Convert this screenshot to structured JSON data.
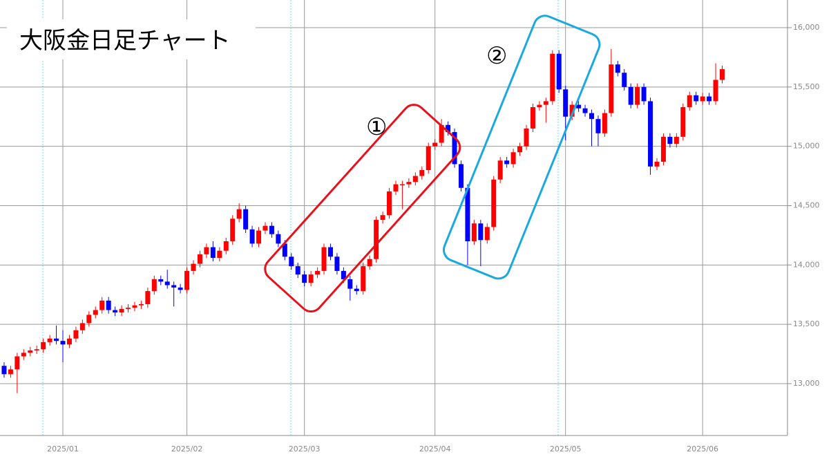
{
  "chart_data": {
    "type": "candlestick",
    "title": "大阪金日足チャート",
    "annotations": [
      "①",
      "②"
    ],
    "up_color": "#ff0000",
    "down_color": "#0000ff",
    "grid": true,
    "xlim": [
      -0.63,
      120
    ],
    "ylim": [
      12563,
      16233
    ],
    "xticks": [
      {
        "value": 9,
        "label": "2025/01"
      },
      {
        "value": 28,
        "label": "2025/02"
      },
      {
        "value": 46,
        "label": "2025/03"
      },
      {
        "value": 66,
        "label": "2025/04"
      },
      {
        "value": 86,
        "label": "2025/05"
      },
      {
        "value": 107,
        "label": "2025/06"
      }
    ],
    "yticks": [
      {
        "value": 13000,
        "label": "13,000"
      },
      {
        "value": 13500,
        "label": "13,500"
      },
      {
        "value": 14000,
        "label": "14,000"
      },
      {
        "value": 14500,
        "label": "14,500"
      },
      {
        "value": 15000,
        "label": "15,000"
      },
      {
        "value": 15500,
        "label": "15,500"
      },
      {
        "value": 16000,
        "label": "16,000"
      }
    ],
    "open": [
      13150,
      13080,
      13120,
      13230,
      13260,
      13280,
      13290,
      13350,
      13380,
      13360,
      13330,
      13380,
      13450,
      13510,
      13580,
      13620,
      13700,
      13620,
      13600,
      13630,
      13640,
      13660,
      13670,
      13780,
      13880,
      13860,
      13830,
      13810,
      13790,
      13950,
      14010,
      14090,
      14150,
      14060,
      14120,
      14200,
      14390,
      14470,
      14300,
      14180,
      14290,
      14330,
      14260,
      14180,
      14070,
      13990,
      13920,
      13850,
      13920,
      13950,
      14150,
      14070,
      13950,
      13880,
      13800,
      13780,
      13990,
      14050,
      14380,
      14420,
      14620,
      14680,
      14680,
      14700,
      14750,
      14800,
      15000,
      15030,
      15180,
      15120,
      14850,
      14650,
      14200,
      14350,
      14210,
      14320,
      14720,
      14880,
      14850,
      14950,
      15000,
      15150,
      15330,
      15350,
      15380,
      15780,
      15480,
      15250,
      15350,
      15320,
      15280,
      15230,
      15110,
      15280,
      15690,
      15620,
      15500,
      15350,
      15500,
      15380,
      14830,
      14870,
      15080,
      15020,
      15080,
      15330,
      15430,
      15380,
      15420,
      15380,
      15560
    ],
    "high": [
      13180,
      13150,
      13260,
      13290,
      13310,
      13320,
      13380,
      13410,
      13490,
      13450,
      13410,
      13480,
      13540,
      13610,
      13650,
      13730,
      13730,
      13650,
      13660,
      13670,
      13690,
      13700,
      13810,
      13910,
      13910,
      13960,
      13860,
      13840,
      13980,
      14040,
      14120,
      14180,
      14200,
      14150,
      14230,
      14420,
      14520,
      14500,
      14330,
      14320,
      14360,
      14360,
      14290,
      14210,
      14100,
      14020,
      13950,
      13950,
      13980,
      14180,
      14180,
      14100,
      13980,
      13910,
      13830,
      14020,
      14080,
      14410,
      14450,
      14650,
      14710,
      14710,
      14730,
      14780,
      14830,
      15030,
      15060,
      15230,
      15210,
      15150,
      14880,
      14680,
      14380,
      14380,
      14350,
      14750,
      14910,
      14910,
      14980,
      15030,
      15180,
      15360,
      15380,
      15410,
      15810,
      15810,
      15510,
      15380,
      15380,
      15350,
      15310,
      15260,
      15310,
      15820,
      15720,
      15650,
      15530,
      15530,
      15530,
      15410,
      14900,
      15110,
      15110,
      15110,
      15360,
      15460,
      15460,
      15450,
      15450,
      15700,
      15680
    ],
    "low": [
      13050,
      13050,
      12920,
      13200,
      13230,
      13250,
      13260,
      13320,
      13330,
      13180,
      13300,
      13350,
      13420,
      13480,
      13550,
      13590,
      13590,
      13570,
      13570,
      13600,
      13610,
      13630,
      13640,
      13750,
      13830,
      13800,
      13650,
      13760,
      13760,
      13920,
      13980,
      14060,
      14030,
      14030,
      14090,
      14170,
      14360,
      14270,
      14150,
      14150,
      14260,
      14230,
      14150,
      14040,
      13960,
      13890,
      13820,
      13820,
      13890,
      13920,
      14040,
      13920,
      13850,
      13700,
      13750,
      13750,
      13960,
      14020,
      14350,
      14390,
      14590,
      14470,
      14650,
      14670,
      14720,
      14770,
      14970,
      15000,
      15090,
      14820,
      14620,
      14000,
      14170,
      13990,
      14180,
      14290,
      14690,
      14820,
      14820,
      14920,
      14970,
      15120,
      15300,
      15200,
      15350,
      15450,
      15050,
      15220,
      15290,
      15250,
      15000,
      15000,
      15080,
      15250,
      15590,
      15470,
      15320,
      15320,
      15350,
      14760,
      14800,
      14840,
      14990,
      14990,
      15050,
      15300,
      15350,
      15350,
      15350,
      15350,
      15530
    ],
    "close": [
      13080,
      13120,
      13230,
      13260,
      13280,
      13290,
      13350,
      13380,
      13360,
      13330,
      13380,
      13450,
      13510,
      13580,
      13620,
      13700,
      13620,
      13600,
      13630,
      13640,
      13660,
      13670,
      13780,
      13880,
      13860,
      13830,
      13810,
      13790,
      13950,
      14010,
      14090,
      14150,
      14060,
      14120,
      14200,
      14390,
      14470,
      14300,
      14180,
      14290,
      14330,
      14260,
      14180,
      14070,
      13990,
      13920,
      13850,
      13920,
      13950,
      14150,
      14070,
      13950,
      13880,
      13800,
      13780,
      13990,
      14050,
      14380,
      14420,
      14620,
      14680,
      14680,
      14700,
      14750,
      14800,
      15000,
      15030,
      15180,
      15120,
      14850,
      14650,
      14200,
      14350,
      14210,
      14320,
      14720,
      14880,
      14850,
      14950,
      15000,
      15150,
      15330,
      15350,
      15380,
      15780,
      15480,
      15250,
      15350,
      15320,
      15280,
      15230,
      15110,
      15280,
      15690,
      15620,
      15500,
      15350,
      15500,
      15380,
      14830,
      14870,
      15080,
      15020,
      15080,
      15330,
      15430,
      15380,
      15420,
      15380,
      15560,
      15650
    ]
  }
}
